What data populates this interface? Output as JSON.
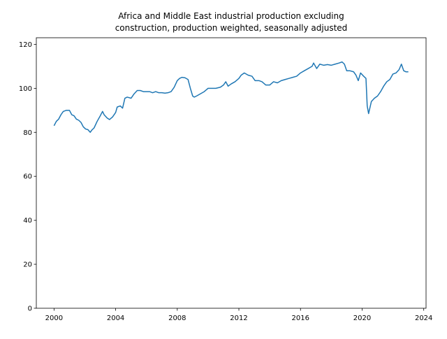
{
  "chart_data": {
    "type": "line",
    "title_lines": [
      "Africa and Middle East industrial production excluding",
      "construction, production weighted, seasonally adjusted"
    ],
    "xlabel": "",
    "ylabel": "",
    "xlim": [
      1998.85,
      2024.15
    ],
    "ylim": [
      0,
      123
    ],
    "xticks": [
      2000,
      2004,
      2008,
      2012,
      2016,
      2020,
      2024
    ],
    "yticks": [
      0,
      20,
      40,
      60,
      80,
      100,
      120
    ],
    "grid": false,
    "legend": "none",
    "series": [
      {
        "color": "#1f77b4",
        "x": [
          2000.0,
          2000.15,
          2000.3,
          2000.45,
          2000.6,
          2000.8,
          2001.0,
          2001.15,
          2001.3,
          2001.45,
          2001.6,
          2001.75,
          2001.9,
          2002.05,
          2002.2,
          2002.35,
          2002.45,
          2002.6,
          2002.8,
          2003.0,
          2003.15,
          2003.25,
          2003.45,
          2003.6,
          2003.8,
          2004.0,
          2004.1,
          2004.3,
          2004.45,
          2004.6,
          2004.75,
          2005.0,
          2005.2,
          2005.4,
          2005.6,
          2005.8,
          2006.0,
          2006.2,
          2006.4,
          2006.6,
          2006.8,
          2007.0,
          2007.2,
          2007.4,
          2007.6,
          2007.8,
          2008.0,
          2008.15,
          2008.3,
          2008.5,
          2008.7,
          2008.85,
          2009.0,
          2009.1,
          2009.25,
          2009.5,
          2009.75,
          2010.0,
          2010.25,
          2010.5,
          2010.8,
          2011.0,
          2011.15,
          2011.3,
          2011.5,
          2011.75,
          2012.0,
          2012.15,
          2012.35,
          2012.6,
          2012.85,
          2013.05,
          2013.3,
          2013.5,
          2013.75,
          2014.0,
          2014.25,
          2014.5,
          2014.75,
          2015.0,
          2015.25,
          2015.5,
          2015.75,
          2016.0,
          2016.25,
          2016.5,
          2016.75,
          2016.85,
          2017.05,
          2017.25,
          2017.5,
          2017.75,
          2018.0,
          2018.25,
          2018.5,
          2018.7,
          2018.85,
          2019.0,
          2019.2,
          2019.45,
          2019.6,
          2019.75,
          2019.9,
          2020.1,
          2020.25,
          2020.33,
          2020.42,
          2020.6,
          2020.8,
          2021.0,
          2021.2,
          2021.4,
          2021.6,
          2021.8,
          2022.0,
          2022.2,
          2022.4,
          2022.55,
          2022.7,
          2022.85,
          2023.0
        ],
        "y": [
          83,
          85,
          86,
          88,
          89.5,
          90,
          90,
          88,
          87.5,
          86,
          85.5,
          84.5,
          82.5,
          81.5,
          81.2,
          80,
          81,
          82,
          85,
          87.5,
          89.5,
          88,
          86.5,
          85.8,
          87,
          89,
          91.5,
          92,
          91,
          95.5,
          96,
          95.5,
          97.5,
          99,
          99,
          98.5,
          98.5,
          98.5,
          98,
          98.5,
          98,
          98,
          97.8,
          98,
          98.5,
          100.5,
          103.5,
          104.5,
          105,
          104.8,
          104,
          100,
          96.5,
          96,
          96.5,
          97.5,
          98.5,
          100,
          100,
          100,
          100.5,
          101.5,
          103,
          101,
          102,
          103,
          104.5,
          106,
          107,
          106,
          105.5,
          103.5,
          103.5,
          103,
          101.5,
          101.5,
          103,
          102.5,
          103.5,
          104,
          104.5,
          105,
          105.5,
          107,
          108,
          109,
          110,
          111.5,
          109,
          111,
          110.5,
          110.8,
          110.5,
          111,
          111.5,
          112,
          111,
          108,
          108,
          107.5,
          106,
          103.5,
          107,
          105.5,
          104.5,
          92,
          88.5,
          94,
          95.5,
          96.5,
          98.5,
          101,
          103,
          104,
          106.5,
          107,
          108.5,
          111,
          108,
          107.5,
          107.5
        ]
      }
    ]
  }
}
